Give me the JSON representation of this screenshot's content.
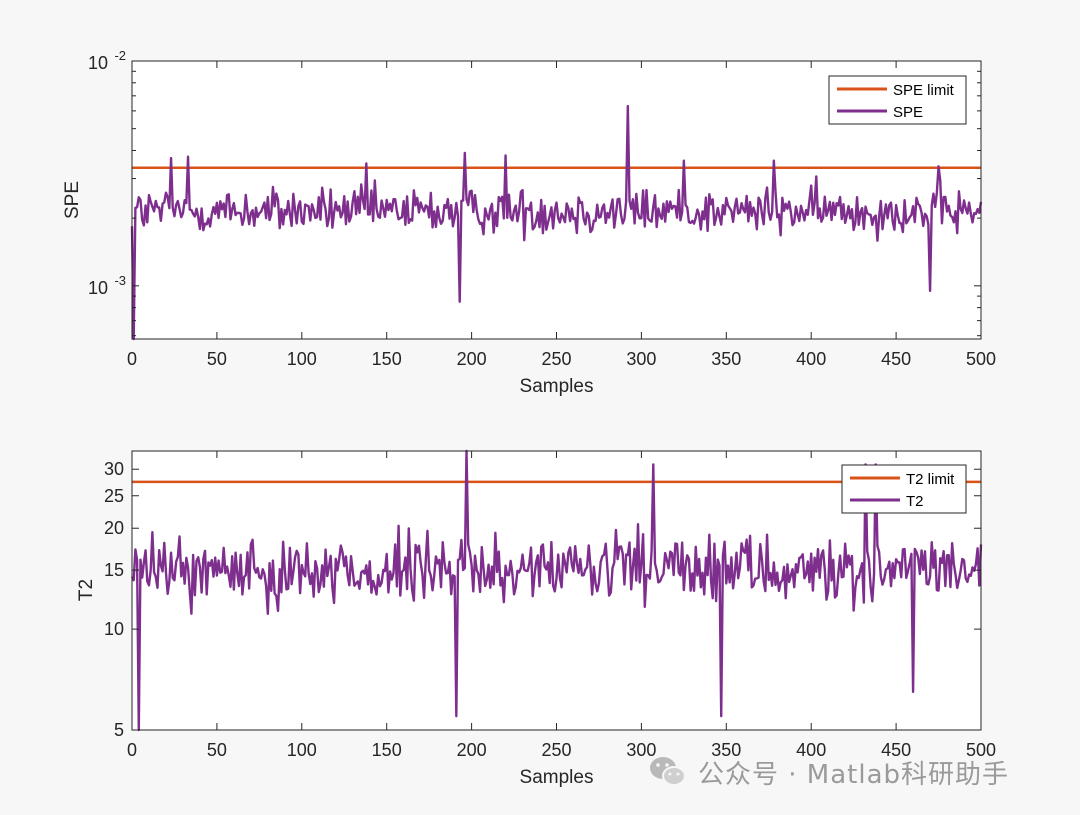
{
  "chart_data": [
    {
      "type": "line",
      "title": "",
      "xlabel": "Samples",
      "ylabel": "SPE",
      "yscale": "log",
      "xlim": [
        0,
        500
      ],
      "ylim": [
        0.00058,
        0.01
      ],
      "x_ticks": [
        0,
        50,
        100,
        150,
        200,
        250,
        300,
        350,
        400,
        450,
        500
      ],
      "y_tick_labels": [
        {
          "value": 0.01,
          "base": "10",
          "exp": "-2"
        },
        {
          "value": 0.001,
          "base": "10",
          "exp": "-3"
        }
      ],
      "grid": false,
      "legend_position": "top-right",
      "series": [
        {
          "name": "SPE limit",
          "color": "#d95319",
          "type": "constant",
          "value": 0.00335
        },
        {
          "name": "SPE",
          "color": "#7e2f8e",
          "type": "noisy",
          "n": 500,
          "baseline": 0.00215,
          "min_value": 0.00058,
          "peaks": [
            [
              1,
              0.00058
            ],
            [
              23,
              0.0037
            ],
            [
              33,
              0.00375
            ],
            [
              138,
              0.0035
            ],
            [
              193,
              0.00085
            ],
            [
              196,
              0.0039
            ],
            [
              220,
              0.0038
            ],
            [
              292,
              0.0063
            ],
            [
              325,
              0.0036
            ],
            [
              378,
              0.0036
            ],
            [
              470,
              0.00095
            ],
            [
              475,
              0.0034
            ]
          ]
        }
      ]
    },
    {
      "type": "line",
      "title": "",
      "xlabel": "Samples",
      "ylabel": "T2",
      "yscale": "log",
      "xlim": [
        0,
        500
      ],
      "ylim": [
        5,
        34
      ],
      "x_ticks": [
        0,
        50,
        100,
        150,
        200,
        250,
        300,
        350,
        400,
        450,
        500
      ],
      "y_ticks": [
        5,
        10,
        15,
        20,
        25,
        30
      ],
      "grid": false,
      "legend_position": "top-right",
      "series": [
        {
          "name": "T2 limit",
          "color": "#d95319",
          "type": "constant",
          "value": 27.5
        },
        {
          "name": "T2",
          "color": "#7e2f8e",
          "type": "noisy",
          "n": 500,
          "baseline": 15,
          "min_value": 5,
          "peaks": [
            [
              4,
              5
            ],
            [
              191,
              5.5
            ],
            [
              197,
              34
            ],
            [
              307,
              31
            ],
            [
              347,
              5.5
            ],
            [
              432,
              31
            ],
            [
              438,
              31
            ],
            [
              460,
              6.5
            ]
          ]
        }
      ]
    }
  ],
  "watermark": {
    "text": "公众号 · Matlab科研助手",
    "icon": "wechat-icon"
  }
}
